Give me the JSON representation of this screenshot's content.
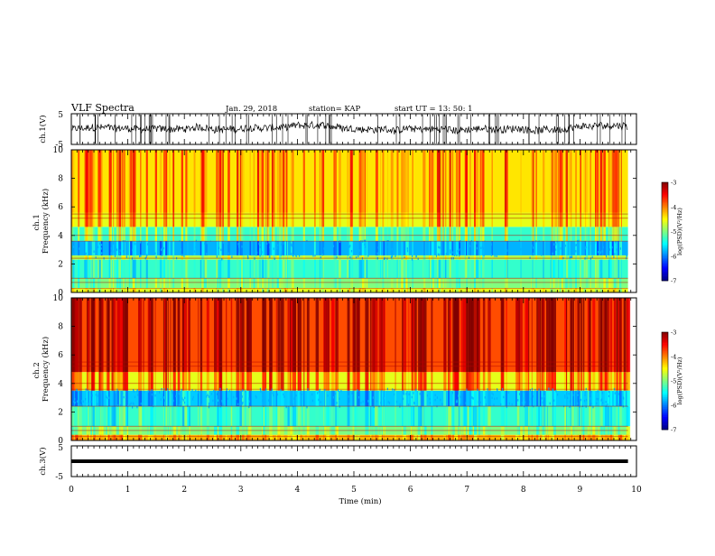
{
  "header": {
    "title": "VLF Spectra",
    "date": "Jan. 29, 2018",
    "station": "station= KAP",
    "start_time": "start UT =  13: 50: 1"
  },
  "chart_data": [
    {
      "id": "ch1-waveform",
      "type": "line",
      "ylabel": "ch.1(V)",
      "ylim": [
        -5,
        5
      ],
      "yticks": [
        "5",
        "-5"
      ],
      "xlim": [
        0,
        10
      ],
      "data_end_min": 9.85,
      "color": "#000000"
    },
    {
      "id": "ch1-spectrogram",
      "type": "heatmap",
      "ylabel": "ch.1\nFrequency (kHz)",
      "ylim": [
        0,
        10
      ],
      "yticks": [
        "0",
        "2",
        "4",
        "6",
        "8",
        "10"
      ],
      "xlim": [
        0,
        10
      ],
      "data_end_min": 9.85,
      "color_scale": {
        "label": "log(PSD)(V²/Hz)",
        "range": [
          -7,
          -3
        ],
        "ticks": [
          "-3",
          "-4",
          "-5",
          "-6",
          "-7"
        ]
      },
      "bands_khz": [
        {
          "from": 0,
          "to": 0.3,
          "level": -4.6
        },
        {
          "from": 0.3,
          "to": 1.0,
          "level": -5.0
        },
        {
          "from": 1.0,
          "to": 2.3,
          "level": -5.3
        },
        {
          "from": 2.3,
          "to": 2.6,
          "level": -4.8
        },
        {
          "from": 2.6,
          "to": 3.6,
          "level": -5.8
        },
        {
          "from": 3.6,
          "to": 4.6,
          "level": -5.3
        },
        {
          "from": 4.6,
          "to": 5.6,
          "level": -4.6
        },
        {
          "from": 5.6,
          "to": 10.0,
          "level": -4.4
        }
      ]
    },
    {
      "id": "ch2-spectrogram",
      "type": "heatmap",
      "ylabel": "ch.2\nFrequency (kHz)",
      "ylim": [
        0,
        10
      ],
      "yticks": [
        "0",
        "2",
        "4",
        "6",
        "8",
        "10"
      ],
      "xlim": [
        0,
        10
      ],
      "data_end_min": 9.85,
      "color_scale": {
        "label": "log(PSD)(V²/Hz)",
        "range": [
          -7,
          -3
        ],
        "ticks": [
          "-3",
          "-4",
          "-5",
          "-6",
          "-7"
        ]
      },
      "bands_khz": [
        {
          "from": 0,
          "to": 0.4,
          "level": -4.2
        },
        {
          "from": 0.4,
          "to": 1.0,
          "level": -5.0
        },
        {
          "from": 1.0,
          "to": 2.4,
          "level": -5.3
        },
        {
          "from": 2.4,
          "to": 3.5,
          "level": -5.7
        },
        {
          "from": 3.5,
          "to": 4.8,
          "level": -4.6
        },
        {
          "from": 4.8,
          "to": 10.0,
          "level": -3.8
        }
      ]
    },
    {
      "id": "ch3-waveform",
      "type": "line",
      "ylabel": "ch.3(V)",
      "ylim": [
        -5,
        5
      ],
      "yticks": [
        "5",
        "-5"
      ],
      "xlim": [
        0,
        10
      ],
      "constant_value": 0,
      "data_end_min": 9.85,
      "color": "#000000"
    }
  ],
  "x_axis": {
    "label": "Time (min)",
    "range": [
      0,
      10
    ],
    "ticks": [
      "0",
      "1",
      "2",
      "3",
      "4",
      "5",
      "6",
      "7",
      "8",
      "9",
      "10"
    ]
  }
}
